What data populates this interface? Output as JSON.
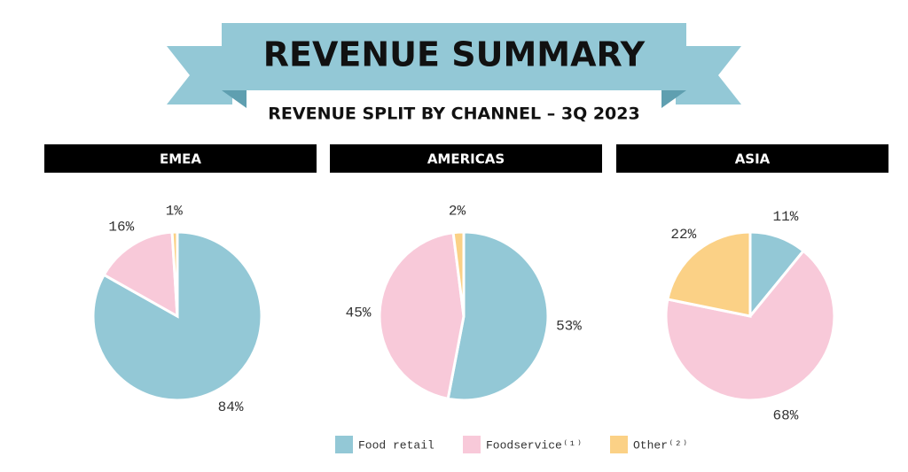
{
  "title": "REVENUE SUMMARY",
  "subtitle": "REVENUE SPLIT BY CHANNEL – 3Q 2023",
  "chart_data": [
    {
      "type": "pie",
      "title": "EMEA",
      "categories": [
        "Food retail",
        "Foodservice⁽¹⁾",
        "Other⁽²⁾"
      ],
      "values": [
        84,
        16,
        1
      ],
      "value_labels": [
        "84%",
        "16%",
        "1%"
      ],
      "colors": [
        "#93c8d6",
        "#f8c9d9",
        "#fbd186"
      ]
    },
    {
      "type": "pie",
      "title": "AMERICAS",
      "categories": [
        "Food retail",
        "Foodservice⁽¹⁾",
        "Other⁽²⁾"
      ],
      "values": [
        53,
        45,
        2
      ],
      "value_labels": [
        "53%",
        "45%",
        "2%"
      ],
      "colors": [
        "#93c8d6",
        "#f8c9d9",
        "#fbd186"
      ]
    },
    {
      "type": "pie",
      "title": "ASIA",
      "categories": [
        "Food retail",
        "Foodservice⁽¹⁾",
        "Other⁽²⁾"
      ],
      "values": [
        11,
        68,
        22
      ],
      "value_labels": [
        "11%",
        "68%",
        "22%"
      ],
      "colors": [
        "#93c8d6",
        "#f8c9d9",
        "#fbd186"
      ]
    }
  ]
}
